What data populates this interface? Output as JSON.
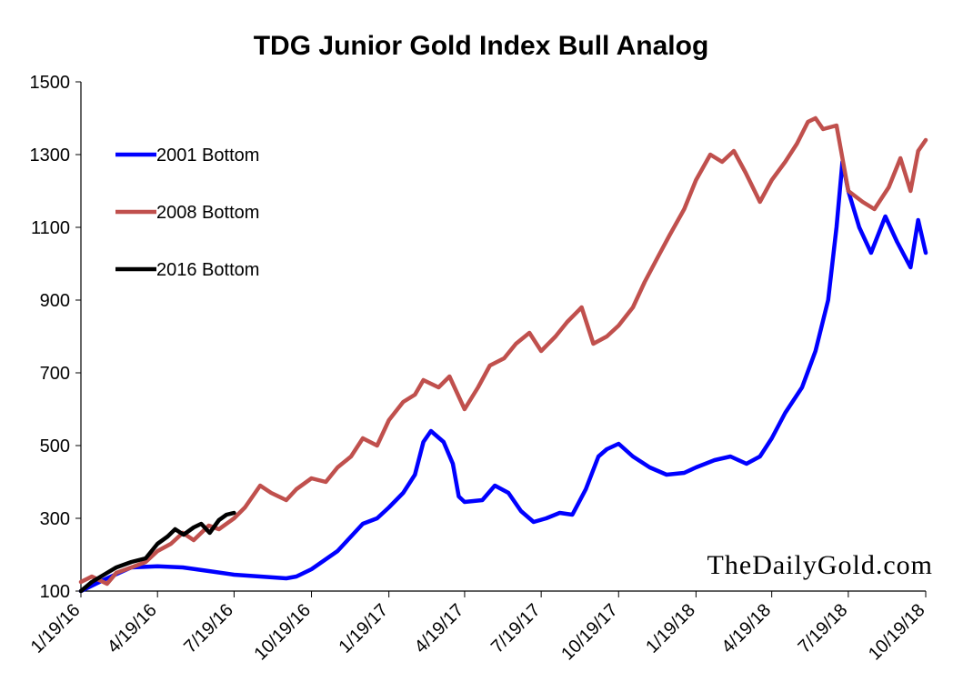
{
  "chart_data": {
    "type": "line",
    "title": "TDG Junior Gold Index Bull Analog",
    "watermark": "TheDailyGold.com",
    "ylim": [
      100,
      1500
    ],
    "yticks": [
      "1500",
      "1300",
      "1100",
      "900",
      "700",
      "500",
      "300",
      "100"
    ],
    "xlim": [
      "1/19/16",
      "10/19/18"
    ],
    "xticks": [
      "1/19/16",
      "4/19/16",
      "7/19/16",
      "10/19/16",
      "1/19/17",
      "4/19/17",
      "7/19/17",
      "10/19/17",
      "1/19/18",
      "4/19/18",
      "7/19/18",
      "10/19/18"
    ],
    "legend_placement": "upper-left",
    "grid": false,
    "series": [
      {
        "name": "2001 Bottom",
        "color": "#0000ff",
        "points": [
          [
            "1/19/16",
            100
          ],
          [
            "2/19/16",
            135
          ],
          [
            "3/19/16",
            165
          ],
          [
            "4/19/16",
            168
          ],
          [
            "5/19/16",
            165
          ],
          [
            "6/19/16",
            155
          ],
          [
            "7/19/16",
            145
          ],
          [
            "8/19/16",
            140
          ],
          [
            "9/19/16",
            135
          ],
          [
            "10/1/16",
            140
          ],
          [
            "10/19/16",
            160
          ],
          [
            "11/19/16",
            210
          ],
          [
            "12/1/16",
            240
          ],
          [
            "12/19/16",
            285
          ],
          [
            "1/5/17",
            300
          ],
          [
            "1/19/17",
            330
          ],
          [
            "2/5/17",
            370
          ],
          [
            "2/19/17",
            420
          ],
          [
            "3/1/17",
            510
          ],
          [
            "3/10/17",
            540
          ],
          [
            "3/25/17",
            510
          ],
          [
            "4/5/17",
            450
          ],
          [
            "4/12/17",
            360
          ],
          [
            "4/19/17",
            345
          ],
          [
            "5/10/17",
            350
          ],
          [
            "5/25/17",
            390
          ],
          [
            "6/10/17",
            370
          ],
          [
            "6/25/17",
            320
          ],
          [
            "7/10/17",
            290
          ],
          [
            "7/25/17",
            300
          ],
          [
            "8/10/17",
            315
          ],
          [
            "8/25/17",
            310
          ],
          [
            "9/10/17",
            380
          ],
          [
            "9/25/17",
            470
          ],
          [
            "10/5/17",
            490
          ],
          [
            "10/19/17",
            505
          ],
          [
            "11/5/17",
            470
          ],
          [
            "11/25/17",
            440
          ],
          [
            "12/15/17",
            420
          ],
          [
            "1/5/18",
            425
          ],
          [
            "1/19/18",
            440
          ],
          [
            "2/10/18",
            460
          ],
          [
            "3/1/18",
            470
          ],
          [
            "3/20/18",
            450
          ],
          [
            "4/5/18",
            470
          ],
          [
            "4/19/18",
            520
          ],
          [
            "5/5/18",
            590
          ],
          [
            "5/25/18",
            660
          ],
          [
            "6/10/18",
            760
          ],
          [
            "6/25/18",
            900
          ],
          [
            "7/5/18",
            1100
          ],
          [
            "7/12/18",
            1280
          ],
          [
            "7/19/18",
            1200
          ],
          [
            "8/1/18",
            1100
          ],
          [
            "8/15/18",
            1030
          ],
          [
            "9/1/18",
            1130
          ],
          [
            "9/15/18",
            1060
          ],
          [
            "10/1/18",
            990
          ],
          [
            "10/10/18",
            1120
          ],
          [
            "10/19/18",
            1030
          ]
        ]
      },
      {
        "name": "2008 Bottom",
        "color": "#c0504d",
        "points": [
          [
            "1/19/16",
            125
          ],
          [
            "2/1/16",
            140
          ],
          [
            "2/19/16",
            120
          ],
          [
            "3/1/16",
            150
          ],
          [
            "3/19/16",
            165
          ],
          [
            "4/5/16",
            180
          ],
          [
            "4/19/16",
            210
          ],
          [
            "5/5/16",
            230
          ],
          [
            "5/19/16",
            260
          ],
          [
            "6/1/16",
            240
          ],
          [
            "6/19/16",
            280
          ],
          [
            "7/1/16",
            270
          ],
          [
            "7/19/16",
            300
          ],
          [
            "8/1/16",
            330
          ],
          [
            "8/19/16",
            390
          ],
          [
            "9/1/16",
            370
          ],
          [
            "9/19/16",
            350
          ],
          [
            "10/1/16",
            380
          ],
          [
            "10/19/16",
            410
          ],
          [
            "11/5/16",
            400
          ],
          [
            "11/19/16",
            440
          ],
          [
            "12/5/16",
            470
          ],
          [
            "12/19/16",
            520
          ],
          [
            "1/5/17",
            500
          ],
          [
            "1/19/17",
            570
          ],
          [
            "2/5/17",
            620
          ],
          [
            "2/19/17",
            640
          ],
          [
            "3/1/17",
            680
          ],
          [
            "3/19/17",
            660
          ],
          [
            "4/1/17",
            690
          ],
          [
            "4/19/17",
            600
          ],
          [
            "5/5/17",
            660
          ],
          [
            "5/19/17",
            720
          ],
          [
            "6/5/17",
            740
          ],
          [
            "6/19/17",
            780
          ],
          [
            "7/5/17",
            810
          ],
          [
            "7/19/17",
            760
          ],
          [
            "8/5/17",
            800
          ],
          [
            "8/19/17",
            840
          ],
          [
            "9/5/17",
            880
          ],
          [
            "9/19/17",
            780
          ],
          [
            "10/5/17",
            800
          ],
          [
            "10/19/17",
            830
          ],
          [
            "11/5/17",
            880
          ],
          [
            "11/19/17",
            950
          ],
          [
            "12/5/17",
            1020
          ],
          [
            "12/19/17",
            1080
          ],
          [
            "1/5/18",
            1150
          ],
          [
            "1/19/18",
            1230
          ],
          [
            "2/5/18",
            1300
          ],
          [
            "2/19/18",
            1280
          ],
          [
            "3/5/18",
            1310
          ],
          [
            "3/19/18",
            1250
          ],
          [
            "4/5/18",
            1170
          ],
          [
            "4/19/18",
            1230
          ],
          [
            "5/5/18",
            1280
          ],
          [
            "5/19/18",
            1330
          ],
          [
            "6/1/18",
            1390
          ],
          [
            "6/10/18",
            1400
          ],
          [
            "6/19/18",
            1370
          ],
          [
            "7/5/18",
            1380
          ],
          [
            "7/19/18",
            1200
          ],
          [
            "8/5/18",
            1170
          ],
          [
            "8/19/18",
            1150
          ],
          [
            "9/5/18",
            1210
          ],
          [
            "9/19/18",
            1290
          ],
          [
            "10/1/18",
            1200
          ],
          [
            "10/10/18",
            1310
          ],
          [
            "10/19/18",
            1340
          ]
        ]
      },
      {
        "name": "2016 Bottom",
        "color": "#000000",
        "points": [
          [
            "1/19/16",
            100
          ],
          [
            "2/1/16",
            125
          ],
          [
            "2/19/16",
            150
          ],
          [
            "3/1/16",
            165
          ],
          [
            "3/19/16",
            180
          ],
          [
            "4/5/16",
            190
          ],
          [
            "4/19/16",
            230
          ],
          [
            "5/1/16",
            250
          ],
          [
            "5/10/16",
            270
          ],
          [
            "5/20/16",
            255
          ],
          [
            "6/1/16",
            275
          ],
          [
            "6/10/16",
            285
          ],
          [
            "6/20/16",
            260
          ],
          [
            "7/1/16",
            295
          ],
          [
            "7/10/16",
            310
          ],
          [
            "7/19/16",
            315
          ]
        ]
      }
    ]
  }
}
